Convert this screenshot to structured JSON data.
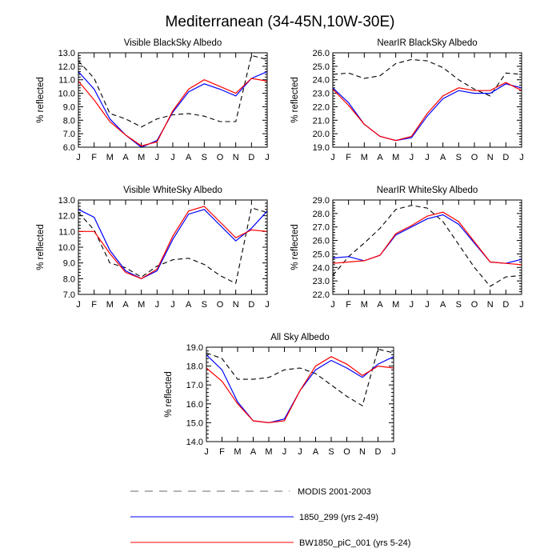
{
  "title": "Mediterranean (34-45N,10W-30E)",
  "colors": {
    "modis": "#000000",
    "run1": "#0000ff",
    "run2": "#ff0000",
    "legend_dash": "#888888"
  },
  "legend": {
    "modis": "MODIS 2001-2003",
    "run1": "1850_299 (yrs 2-49)",
    "run2": "BW1850_piC_001 (yrs 5-24)"
  },
  "chart_data": [
    {
      "type": "line",
      "title": "Visible BlackSky Albedo",
      "ylabel": "% reflected",
      "ylim": [
        6.0,
        13.0
      ],
      "yticks": [
        "6.0",
        "7.0",
        "8.0",
        "9.0",
        "10.0",
        "11.0",
        "12.0",
        "13.0"
      ],
      "x": [
        "J",
        "F",
        "M",
        "A",
        "M",
        "J",
        "J",
        "A",
        "S",
        "O",
        "N",
        "D",
        "J"
      ],
      "series": [
        {
          "name": "MODIS 2001-2003",
          "values": [
            12.4,
            11.1,
            8.5,
            8.1,
            7.5,
            8.1,
            8.4,
            8.5,
            8.3,
            7.9,
            7.9,
            12.8,
            12.5
          ]
        },
        {
          "name": "1850_299 (yrs 2-49)",
          "values": [
            11.6,
            10.3,
            8.1,
            6.9,
            6.0,
            6.5,
            8.6,
            10.1,
            10.7,
            10.3,
            9.8,
            11.1,
            11.6
          ]
        },
        {
          "name": "BW1850_piC_001 (yrs 5-24)",
          "values": [
            10.9,
            9.5,
            7.9,
            6.9,
            6.1,
            6.4,
            8.7,
            10.3,
            11.0,
            10.5,
            10.0,
            11.1,
            10.9
          ]
        }
      ]
    },
    {
      "type": "line",
      "title": "NearIR BlackSky Albedo",
      "ylabel": "% reflected",
      "ylim": [
        19.0,
        26.0
      ],
      "yticks": [
        "19.0",
        "20.0",
        "21.0",
        "22.0",
        "23.0",
        "24.0",
        "25.0",
        "26.0"
      ],
      "x": [
        "J",
        "F",
        "M",
        "A",
        "M",
        "J",
        "J",
        "A",
        "S",
        "O",
        "N",
        "D",
        "J"
      ],
      "series": [
        {
          "name": "MODIS 2001-2003",
          "values": [
            24.4,
            24.5,
            24.1,
            24.3,
            25.2,
            25.5,
            25.4,
            24.9,
            24.0,
            23.3,
            22.8,
            24.5,
            24.4
          ]
        },
        {
          "name": "1850_299 (yrs 2-49)",
          "values": [
            23.4,
            22.3,
            20.7,
            19.8,
            19.5,
            19.7,
            21.3,
            22.6,
            23.2,
            23.0,
            23.0,
            23.7,
            23.4
          ]
        },
        {
          "name": "BW1850_piC_001 (yrs 5-24)",
          "values": [
            23.3,
            22.1,
            20.7,
            19.8,
            19.5,
            19.8,
            21.5,
            22.8,
            23.4,
            23.2,
            23.2,
            23.8,
            23.2
          ]
        }
      ]
    },
    {
      "type": "line",
      "title": "Visible WhiteSky Albedo",
      "ylabel": "% reflected",
      "ylim": [
        7.0,
        13.0
      ],
      "yticks": [
        "7.0",
        "8.0",
        "9.0",
        "10.0",
        "11.0",
        "12.0",
        "13.0"
      ],
      "x": [
        "J",
        "F",
        "M",
        "A",
        "M",
        "J",
        "J",
        "A",
        "S",
        "O",
        "N",
        "D",
        "J"
      ],
      "series": [
        {
          "name": "MODIS 2001-2003",
          "values": [
            12.2,
            11.1,
            9.0,
            8.7,
            8.1,
            8.8,
            9.2,
            9.3,
            8.9,
            8.2,
            7.7,
            12.5,
            12.2
          ]
        },
        {
          "name": "1850_299 (yrs 2-49)",
          "values": [
            12.4,
            11.9,
            9.8,
            8.5,
            8.0,
            8.5,
            10.5,
            12.1,
            12.4,
            11.4,
            10.4,
            11.2,
            12.3
          ]
        },
        {
          "name": "BW1850_piC_001 (yrs 5-24)",
          "values": [
            11.0,
            11.0,
            9.6,
            8.4,
            8.0,
            8.6,
            10.7,
            12.3,
            12.6,
            11.6,
            10.6,
            11.1,
            11.0
          ]
        }
      ]
    },
    {
      "type": "line",
      "title": "NearIR WhiteSky Albedo",
      "ylabel": "% reflected",
      "ylim": [
        22.0,
        29.0
      ],
      "yticks": [
        "22.0",
        "23.0",
        "24.0",
        "25.0",
        "26.0",
        "27.0",
        "28.0",
        "29.0"
      ],
      "x": [
        "J",
        "F",
        "M",
        "A",
        "M",
        "J",
        "J",
        "A",
        "S",
        "O",
        "N",
        "D",
        "J"
      ],
      "series": [
        {
          "name": "MODIS 2001-2003",
          "values": [
            23.4,
            24.8,
            25.8,
            26.9,
            28.3,
            28.6,
            28.4,
            27.4,
            25.7,
            24.0,
            22.6,
            23.3,
            23.4
          ]
        },
        {
          "name": "1850_299 (yrs 2-49)",
          "values": [
            24.7,
            24.8,
            24.5,
            24.9,
            26.4,
            27.0,
            27.6,
            27.9,
            27.2,
            25.8,
            24.4,
            24.3,
            24.6
          ]
        },
        {
          "name": "BW1850_piC_001 (yrs 5-24)",
          "values": [
            24.3,
            24.4,
            24.5,
            24.9,
            26.5,
            27.1,
            27.8,
            28.1,
            27.4,
            25.9,
            24.4,
            24.3,
            24.2
          ]
        }
      ]
    },
    {
      "type": "line",
      "title": "All Sky Albedo",
      "ylabel": "% reflected",
      "ylim": [
        14.0,
        19.0
      ],
      "yticks": [
        "14.0",
        "15.0",
        "16.0",
        "17.0",
        "18.0",
        "19.0"
      ],
      "x": [
        "J",
        "F",
        "M",
        "A",
        "M",
        "J",
        "J",
        "A",
        "S",
        "O",
        "N",
        "D",
        "J"
      ],
      "series": [
        {
          "name": "MODIS 2001-2003",
          "values": [
            18.7,
            18.4,
            17.3,
            17.3,
            17.4,
            17.8,
            17.9,
            17.6,
            17.0,
            16.4,
            15.9,
            18.9,
            18.7
          ]
        },
        {
          "name": "1850_299 (yrs 2-49)",
          "values": [
            18.6,
            17.8,
            16.1,
            15.1,
            15.0,
            15.2,
            16.7,
            17.8,
            18.3,
            17.9,
            17.4,
            18.1,
            18.5
          ]
        },
        {
          "name": "BW1850_piC_001 (yrs 5-24)",
          "values": [
            17.9,
            17.2,
            16.0,
            15.1,
            15.0,
            15.1,
            16.7,
            18.0,
            18.5,
            18.1,
            17.5,
            18.0,
            17.9
          ]
        }
      ]
    }
  ]
}
